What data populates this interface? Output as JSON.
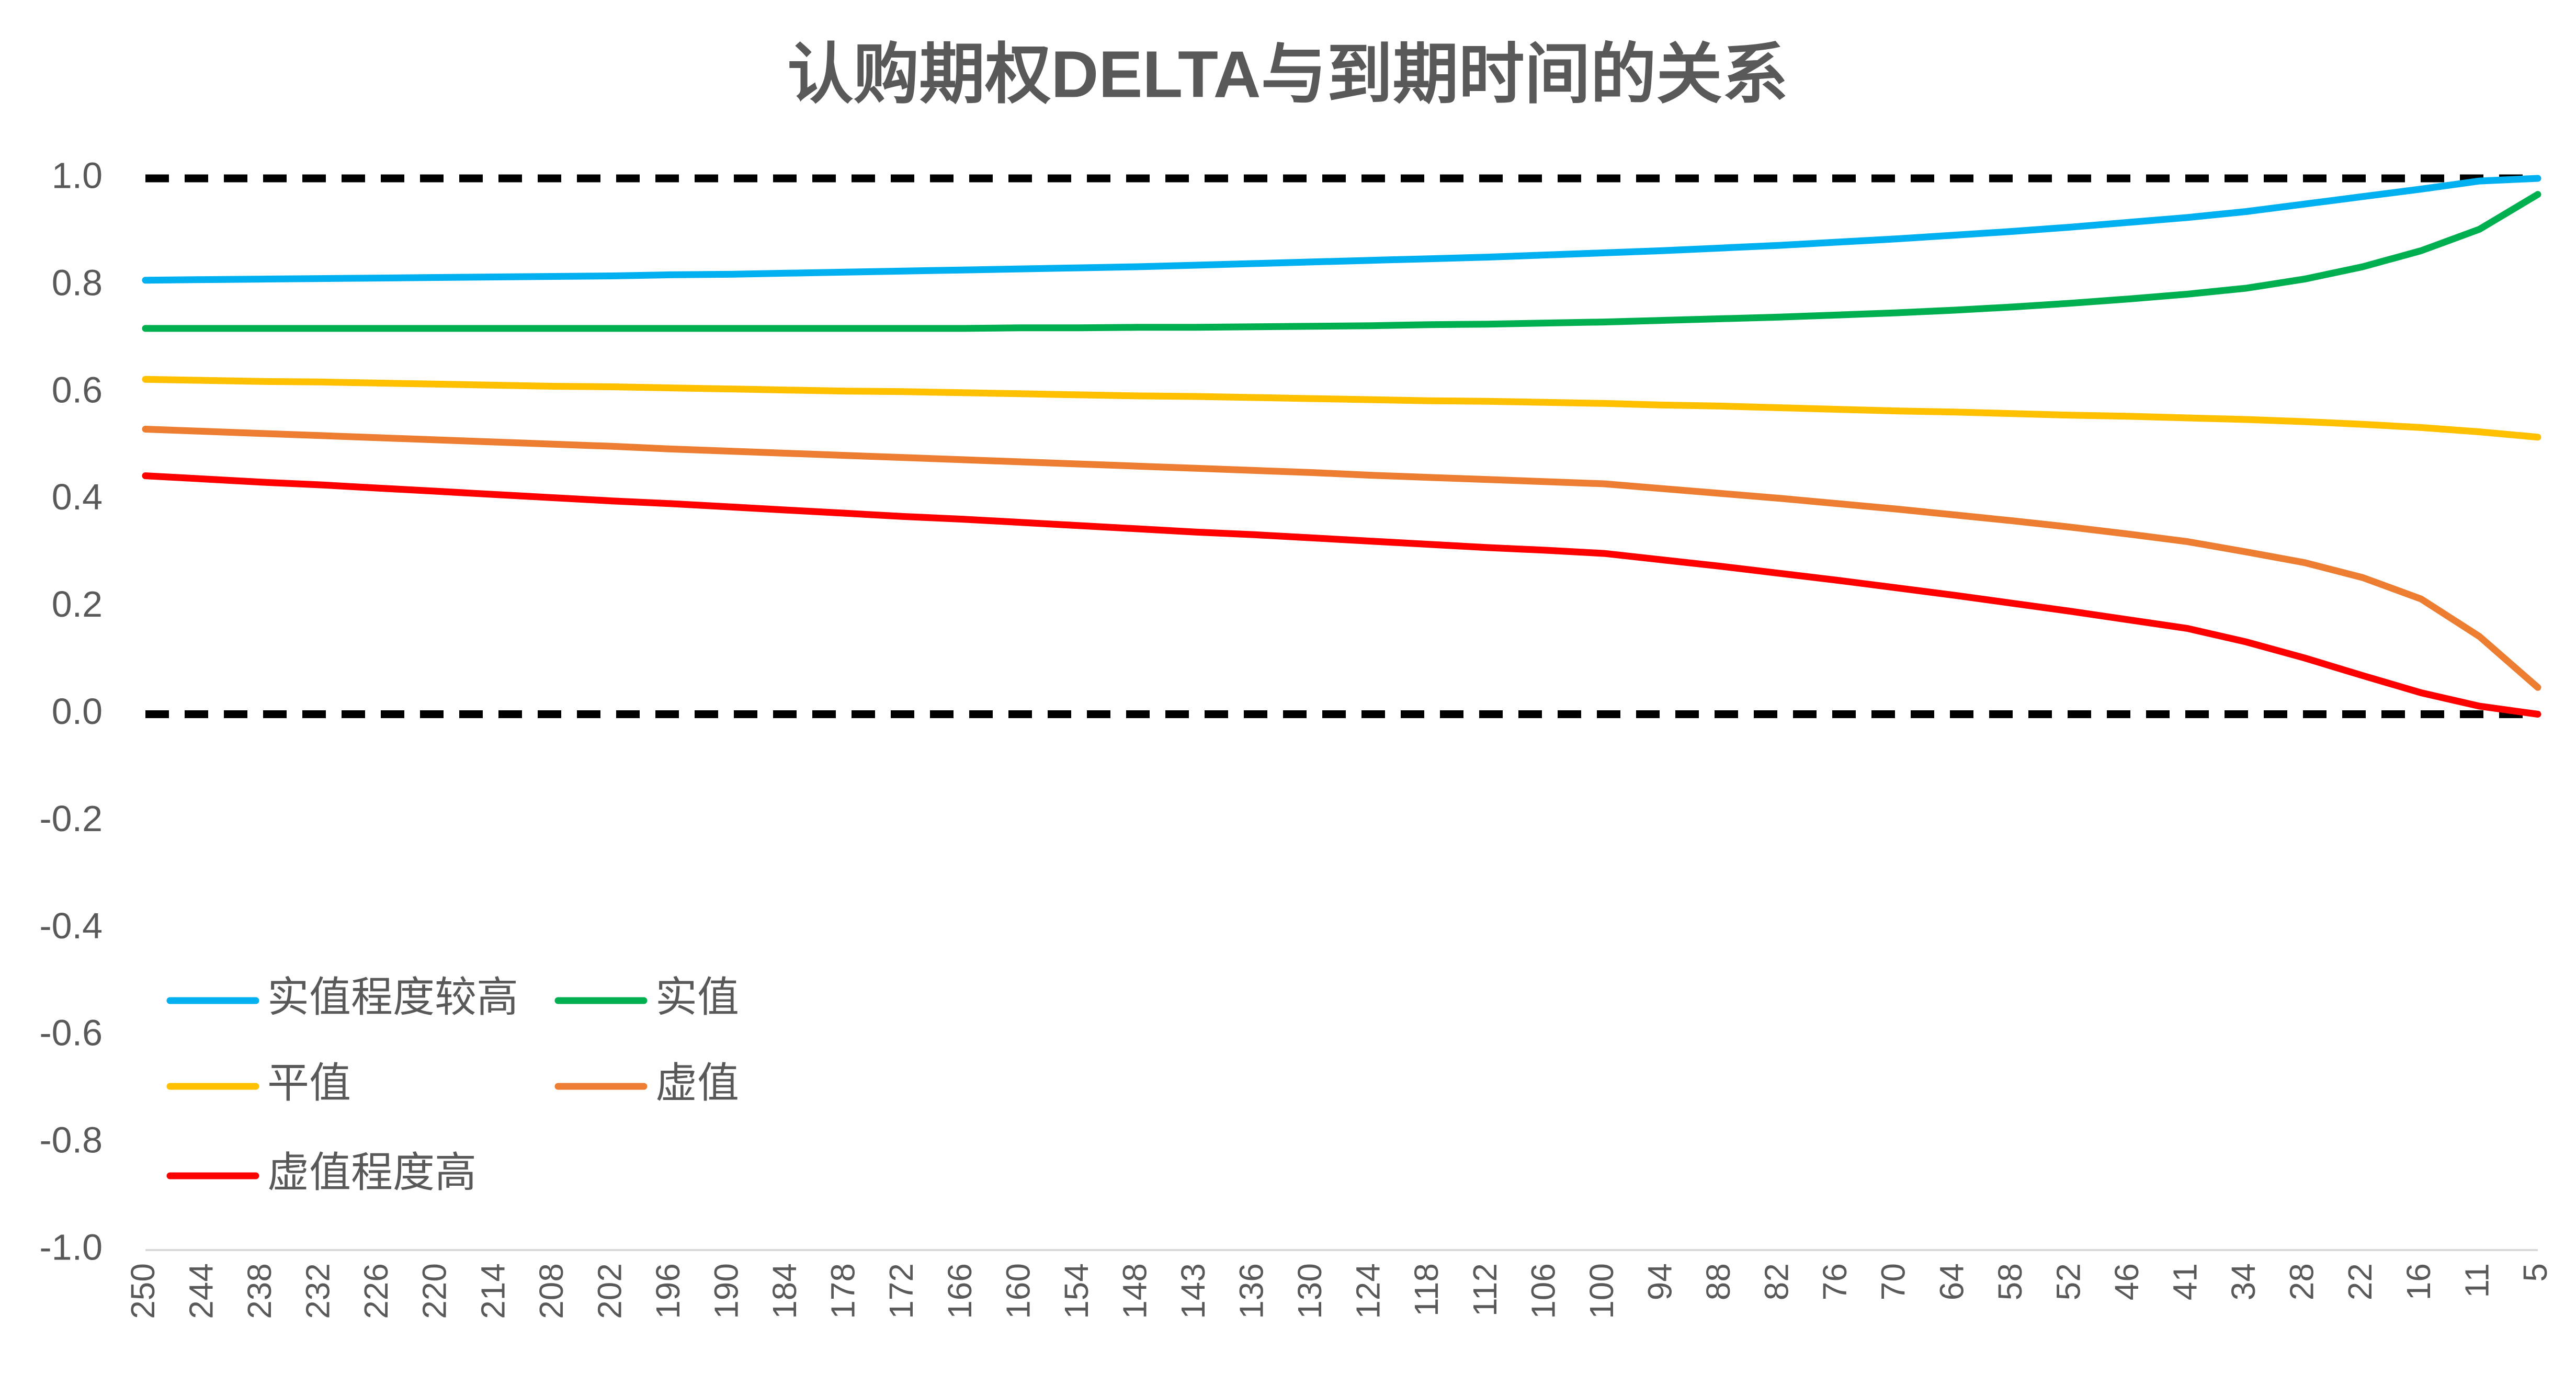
{
  "chart_data": {
    "type": "line",
    "title": "认购期权DELTA与到期时间的关系",
    "categories": [
      "250",
      "244",
      "238",
      "232",
      "226",
      "220",
      "214",
      "208",
      "202",
      "196",
      "190",
      "184",
      "178",
      "172",
      "166",
      "160",
      "154",
      "148",
      "143",
      "136",
      "130",
      "124",
      "118",
      "112",
      "106",
      "100",
      "94",
      "88",
      "82",
      "76",
      "70",
      "64",
      "58",
      "52",
      "46",
      "41",
      "34",
      "28",
      "22",
      "16",
      "11",
      "5"
    ],
    "series": [
      {
        "name": "实值程度较高",
        "color": "#00B0F0",
        "values": [
          0.81,
          0.811,
          0.812,
          0.813,
          0.814,
          0.815,
          0.816,
          0.817,
          0.818,
          0.82,
          0.821,
          0.823,
          0.825,
          0.827,
          0.829,
          0.831,
          0.833,
          0.835,
          0.838,
          0.841,
          0.844,
          0.847,
          0.85,
          0.853,
          0.857,
          0.861,
          0.865,
          0.87,
          0.875,
          0.881,
          0.887,
          0.894,
          0.901,
          0.909,
          0.918,
          0.927,
          0.938,
          0.952,
          0.966,
          0.98,
          0.995,
          1.0
        ]
      },
      {
        "name": "实值",
        "color": "#00B050",
        "values": [
          0.72,
          0.72,
          0.72,
          0.72,
          0.72,
          0.72,
          0.72,
          0.72,
          0.72,
          0.72,
          0.72,
          0.72,
          0.72,
          0.72,
          0.72,
          0.721,
          0.721,
          0.722,
          0.722,
          0.723,
          0.724,
          0.725,
          0.727,
          0.728,
          0.73,
          0.732,
          0.735,
          0.738,
          0.741,
          0.745,
          0.749,
          0.754,
          0.76,
          0.767,
          0.775,
          0.784,
          0.795,
          0.812,
          0.835,
          0.865,
          0.905,
          0.97
        ]
      },
      {
        "name": "平值",
        "color": "#FFC000",
        "values": [
          0.625,
          0.623,
          0.621,
          0.62,
          0.618,
          0.616,
          0.614,
          0.612,
          0.611,
          0.609,
          0.607,
          0.605,
          0.603,
          0.602,
          0.6,
          0.598,
          0.596,
          0.594,
          0.593,
          0.591,
          0.589,
          0.587,
          0.585,
          0.584,
          0.582,
          0.58,
          0.577,
          0.575,
          0.572,
          0.569,
          0.566,
          0.564,
          0.561,
          0.558,
          0.556,
          0.553,
          0.55,
          0.546,
          0.541,
          0.535,
          0.527,
          0.517
        ]
      },
      {
        "name": "虚值",
        "color": "#ED7D31",
        "values": [
          0.532,
          0.528,
          0.524,
          0.52,
          0.516,
          0.512,
          0.508,
          0.504,
          0.5,
          0.495,
          0.491,
          0.487,
          0.483,
          0.479,
          0.475,
          0.471,
          0.467,
          0.463,
          0.459,
          0.455,
          0.451,
          0.446,
          0.442,
          0.438,
          0.434,
          0.43,
          0.421,
          0.412,
          0.403,
          0.393,
          0.383,
          0.372,
          0.361,
          0.349,
          0.336,
          0.322,
          0.303,
          0.283,
          0.255,
          0.215,
          0.145,
          0.05
        ]
      },
      {
        "name": "虚值程度高",
        "color": "#FF0000",
        "values": [
          0.445,
          0.439,
          0.433,
          0.428,
          0.422,
          0.416,
          0.41,
          0.404,
          0.398,
          0.393,
          0.387,
          0.381,
          0.375,
          0.369,
          0.364,
          0.358,
          0.352,
          0.346,
          0.34,
          0.335,
          0.329,
          0.323,
          0.317,
          0.311,
          0.306,
          0.3,
          0.288,
          0.276,
          0.263,
          0.25,
          0.236,
          0.222,
          0.207,
          0.192,
          0.176,
          0.16,
          0.135,
          0.105,
          0.072,
          0.04,
          0.015,
          0.0
        ]
      }
    ],
    "reference_lines": [
      0,
      1
    ],
    "reference_color": "#000000",
    "ylim": [
      -1,
      1
    ],
    "yticks": [
      {
        "value": -1,
        "label": "-1.0"
      },
      {
        "value": -0.8,
        "label": "-0.8"
      },
      {
        "value": -0.6,
        "label": "-0.6"
      },
      {
        "value": -0.4,
        "label": "-0.4"
      },
      {
        "value": -0.2,
        "label": "-0.2"
      },
      {
        "value": 0,
        "label": "0.0"
      },
      {
        "value": 0.2,
        "label": "0.2"
      },
      {
        "value": 0.4,
        "label": "0.4"
      },
      {
        "value": 0.6,
        "label": "0.6"
      },
      {
        "value": 0.8,
        "label": "0.8"
      },
      {
        "value": 1,
        "label": "1.0"
      }
    ],
    "grid": false,
    "legend": "bottom-left"
  }
}
